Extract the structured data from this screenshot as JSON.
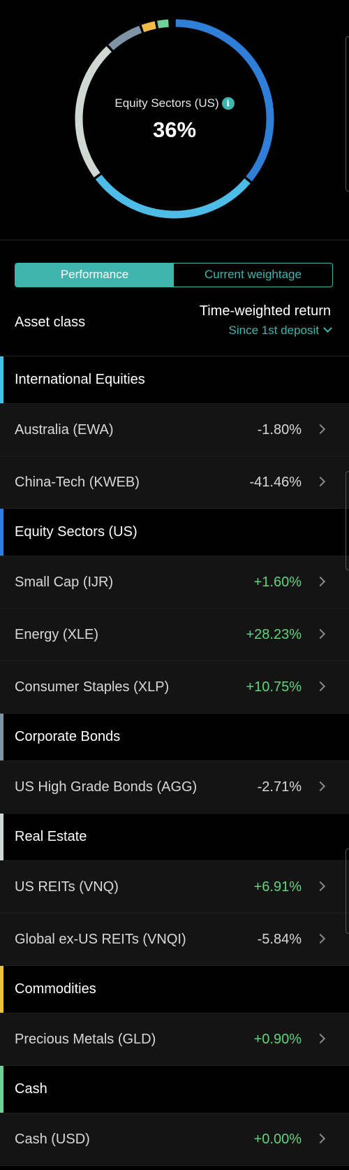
{
  "donut": {
    "label": "Equity Sectors (US)",
    "value": "36%",
    "segments": [
      {
        "name": "Equity Sectors (US)",
        "start": 0,
        "end": 0.36,
        "color": "#2f7fd9"
      },
      {
        "name": "International Equities",
        "start": 0.36,
        "end": 0.648,
        "color": "#4dbde7"
      },
      {
        "name": "Real Estate",
        "start": 0.648,
        "end": 0.882,
        "color": "#cfd8d3"
      },
      {
        "name": "Corporate Bonds",
        "start": 0.882,
        "end": 0.944,
        "color": "#7f93a6"
      },
      {
        "name": "Commodities",
        "start": 0.944,
        "end": 0.97,
        "color": "#f0bb46"
      },
      {
        "name": "Cash",
        "start": 0.97,
        "end": 0.992,
        "color": "#6fd196"
      }
    ]
  },
  "toggle": {
    "performance": "Performance",
    "weightage": "Current weightage"
  },
  "table": {
    "asset_class_label": "Asset class",
    "return_title": "Time-weighted return",
    "return_period": "Since 1st deposit"
  },
  "categories": [
    {
      "name": "International Equities",
      "color": "#4dbde7",
      "assets": [
        {
          "name": "Australia (EWA)",
          "value": "-1.80%",
          "sign": "neg"
        },
        {
          "name": "China-Tech (KWEB)",
          "value": "-41.46%",
          "sign": "neg"
        }
      ]
    },
    {
      "name": "Equity Sectors (US)",
      "color": "#2f7fd9",
      "assets": [
        {
          "name": "Small Cap (IJR)",
          "value": "+1.60%",
          "sign": "pos"
        },
        {
          "name": "Energy (XLE)",
          "value": "+28.23%",
          "sign": "pos"
        },
        {
          "name": "Consumer Staples (XLP)",
          "value": "+10.75%",
          "sign": "pos"
        }
      ]
    },
    {
      "name": "Corporate Bonds",
      "color": "#7f93a6",
      "assets": [
        {
          "name": "US High Grade Bonds (AGG)",
          "value": "-2.71%",
          "sign": "neg"
        }
      ]
    },
    {
      "name": "Real Estate",
      "color": "#cfd8d3",
      "assets": [
        {
          "name": "US REITs (VNQ)",
          "value": "+6.91%",
          "sign": "pos"
        },
        {
          "name": "Global ex-US REITs (VNQI)",
          "value": "-5.84%",
          "sign": "neg"
        }
      ]
    },
    {
      "name": "Commodities",
      "color": "#f0bb46",
      "assets": [
        {
          "name": "Precious Metals (GLD)",
          "value": "+0.90%",
          "sign": "pos"
        }
      ]
    },
    {
      "name": "Cash",
      "color": "#6fd196",
      "assets": [
        {
          "name": "Cash (USD)",
          "value": "+0.00%",
          "sign": "pos"
        }
      ]
    }
  ]
}
